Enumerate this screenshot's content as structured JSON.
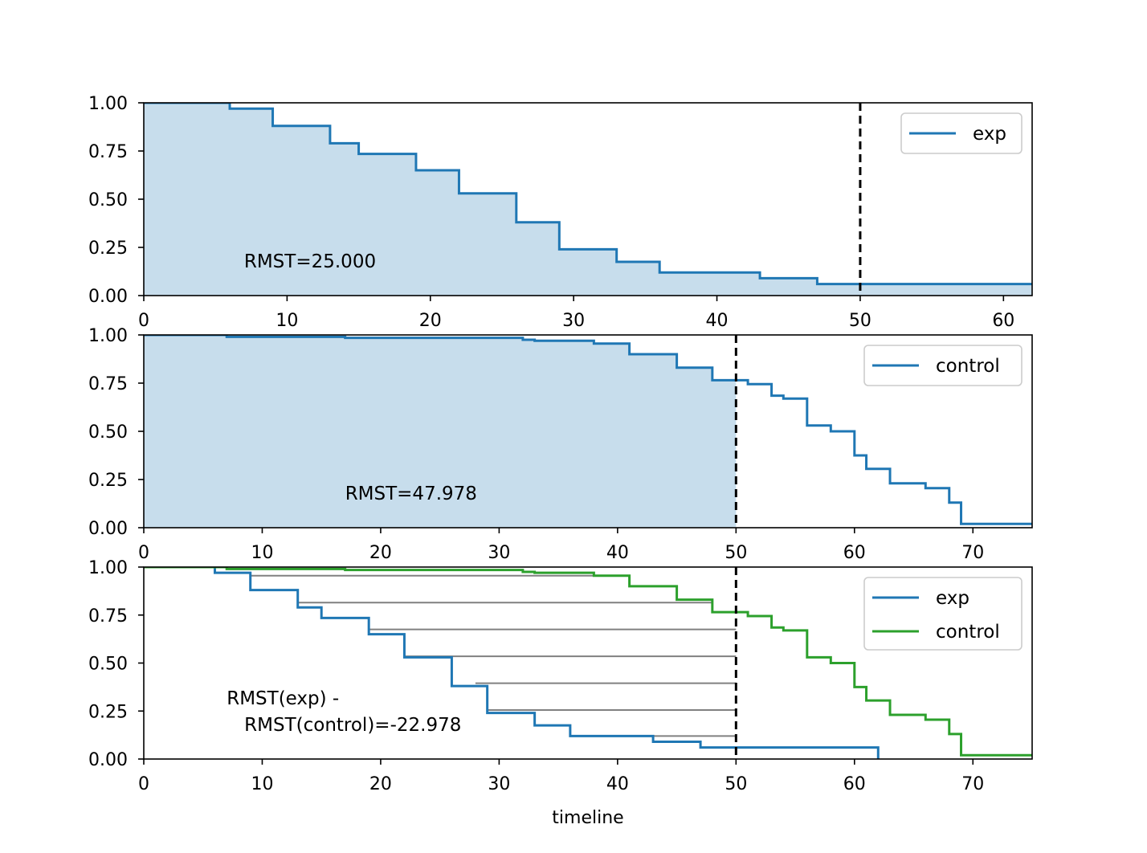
{
  "chart_data": [
    {
      "type": "line",
      "title": "",
      "xlabel": "",
      "ylabel": "",
      "xlim": [
        0,
        62
      ],
      "ylim": [
        0,
        1
      ],
      "xticks": [
        "0",
        "10",
        "20",
        "30",
        "40",
        "50",
        "60"
      ],
      "yticks": [
        "0.00",
        "0.25",
        "0.50",
        "0.75",
        "1.00"
      ],
      "rmst_time": 50,
      "annotation": [
        "RMST=25.000"
      ],
      "annotation_pos": [
        7,
        0.18
      ],
      "legend": [
        "exp"
      ],
      "series": [
        {
          "name": "exp",
          "color": "#1f77b4",
          "step_x": [
            0,
            6,
            9,
            13,
            15,
            19,
            22,
            26,
            29,
            33,
            36,
            43,
            47,
            62
          ],
          "step_y": [
            1.0,
            0.97,
            0.88,
            0.79,
            0.735,
            0.65,
            0.53,
            0.38,
            0.24,
            0.175,
            0.12,
            0.09,
            0.06,
            0.06
          ],
          "fill_to": 62
        }
      ]
    },
    {
      "type": "line",
      "title": "",
      "xlabel": "",
      "ylabel": "",
      "xlim": [
        0,
        75
      ],
      "ylim": [
        0,
        1
      ],
      "xticks": [
        "0",
        "10",
        "20",
        "30",
        "40",
        "50",
        "60",
        "70"
      ],
      "yticks": [
        "0.00",
        "0.25",
        "0.50",
        "0.75",
        "1.00"
      ],
      "rmst_time": 50,
      "annotation": [
        "RMST=47.978"
      ],
      "annotation_pos": [
        17,
        0.18
      ],
      "legend": [
        "control"
      ],
      "series": [
        {
          "name": "control",
          "color": "#1f77b4",
          "step_x": [
            0,
            7,
            17,
            32,
            33,
            38,
            41,
            45,
            48,
            51,
            53,
            54,
            56,
            58,
            60,
            61,
            63,
            66,
            68,
            69,
            75
          ],
          "step_y": [
            1.0,
            0.99,
            0.985,
            0.975,
            0.97,
            0.955,
            0.9,
            0.83,
            0.765,
            0.745,
            0.685,
            0.67,
            0.53,
            0.5,
            0.375,
            0.305,
            0.23,
            0.205,
            0.13,
            0.02,
            0.02
          ],
          "fill_to": 50
        }
      ]
    },
    {
      "type": "line",
      "title": "",
      "xlabel": "timeline",
      "ylabel": "",
      "xlim": [
        0,
        75
      ],
      "ylim": [
        0,
        1
      ],
      "xticks": [
        "0",
        "10",
        "20",
        "30",
        "40",
        "50",
        "60",
        "70"
      ],
      "yticks": [
        "0.00",
        "0.25",
        "0.50",
        "0.75",
        "1.00"
      ],
      "rmst_time": 50,
      "annotation": [
        "RMST(exp) -",
        "   RMST(control)=-22.978"
      ],
      "annotation_pos": [
        7,
        0.18
      ],
      "legend": [
        "exp",
        "control"
      ],
      "diff_lines": [
        {
          "y": 0.955,
          "x1": 9,
          "x2": 38
        },
        {
          "y": 0.815,
          "x1": 13,
          "x2": 48
        },
        {
          "y": 0.675,
          "x1": 19,
          "x2": 50
        },
        {
          "y": 0.535,
          "x1": 22,
          "x2": 50
        },
        {
          "y": 0.395,
          "x1": 28,
          "x2": 50
        },
        {
          "y": 0.255,
          "x1": 29,
          "x2": 50
        },
        {
          "y": 0.12,
          "x1": 43,
          "x2": 50
        }
      ],
      "series": [
        {
          "name": "exp",
          "color": "#1f77b4",
          "step_x": [
            0,
            6,
            9,
            13,
            15,
            19,
            22,
            26,
            29,
            33,
            36,
            43,
            47,
            62
          ],
          "step_y": [
            1.0,
            0.97,
            0.88,
            0.79,
            0.735,
            0.65,
            0.53,
            0.38,
            0.24,
            0.175,
            0.12,
            0.09,
            0.06,
            0.06
          ],
          "drop_to_zero_at_end": true
        },
        {
          "name": "control",
          "color": "#2ca02c",
          "step_x": [
            0,
            7,
            17,
            32,
            33,
            38,
            41,
            45,
            48,
            51,
            53,
            54,
            56,
            58,
            60,
            61,
            63,
            66,
            68,
            69,
            75
          ],
          "step_y": [
            1.0,
            0.99,
            0.985,
            0.975,
            0.97,
            0.955,
            0.9,
            0.83,
            0.765,
            0.745,
            0.685,
            0.67,
            0.53,
            0.5,
            0.375,
            0.305,
            0.23,
            0.205,
            0.13,
            0.02,
            0.02
          ]
        }
      ]
    }
  ]
}
